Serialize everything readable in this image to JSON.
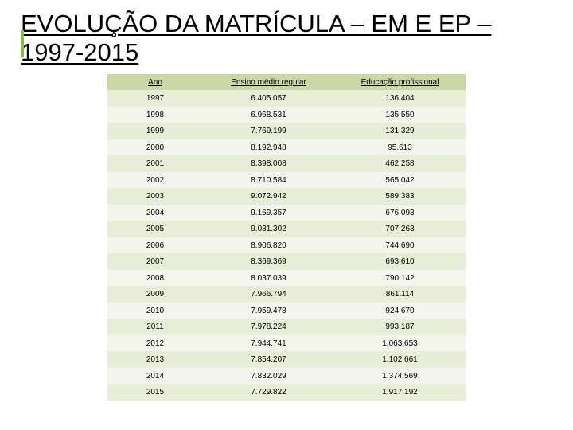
{
  "title": "EVOLUÇÃO DA MATRÍCULA – EM E EP – 1997-2015",
  "accent_color": "#8ab84a",
  "table": {
    "header_bg": "#c9d9a5",
    "row_odd_bg": "#e8edd8",
    "row_even_bg": "#f4f6ed",
    "columns": [
      "Ano",
      "Ensino médio regular",
      "Educação profissional"
    ],
    "rows": [
      [
        "1997",
        "6.405.057",
        "136.404"
      ],
      [
        "1998",
        "6.968.531",
        "135.550"
      ],
      [
        "1999",
        "7.769.199",
        "131.329"
      ],
      [
        "2000",
        "8.192.948",
        "95.613"
      ],
      [
        "2001",
        "8.398.008",
        "462.258"
      ],
      [
        "2002",
        "8.710.584",
        "565.042"
      ],
      [
        "2003",
        "9.072.942",
        "589.383"
      ],
      [
        "2004",
        "9.169.357",
        "676.093"
      ],
      [
        "2005",
        "9.031.302",
        "707.263"
      ],
      [
        "2006",
        "8.906.820",
        "744.690"
      ],
      [
        "2007",
        "8.369.369",
        "693.610"
      ],
      [
        "2008",
        "8.037.039",
        "790.142"
      ],
      [
        "2009",
        "7.966.794",
        "861.114"
      ],
      [
        "2010",
        "7.959.478",
        "924.670"
      ],
      [
        "2011",
        "7.978.224",
        "993.187"
      ],
      [
        "2012",
        "7.944.741",
        "1.063.653"
      ],
      [
        "2013",
        "7.854.207",
        "1.102.661"
      ],
      [
        "2014",
        "7.832.029",
        "1.374.569"
      ],
      [
        "2015",
        "7.729.822",
        "1.917.192"
      ]
    ]
  }
}
